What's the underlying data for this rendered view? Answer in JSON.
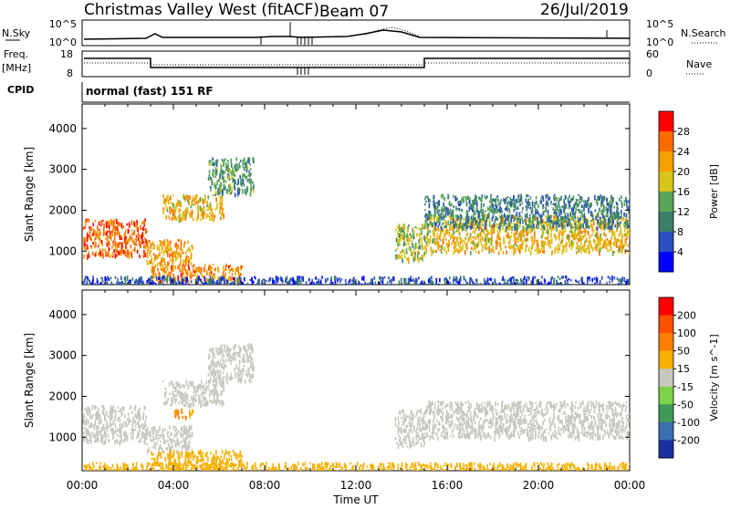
{
  "header": {
    "station": "Christmas Valley West (fitACF)",
    "beam": "Beam 07",
    "date": "26/Jul/2019"
  },
  "strip_labels": {
    "nsky": "N.Sky",
    "nsearch": "N.Search",
    "freq": "Freq.",
    "freq_unit": "[MHz]",
    "nave": "Nave",
    "cpid": "CPID",
    "cpid_value": "normal (fast) 151 RF",
    "noise_tick_top": "10^5",
    "noise_tick_bottom": "10^0",
    "freq_tick_top": "18",
    "freq_tick_bottom": "8",
    "nave_tick_top": "60",
    "nave_tick_bottom": "0"
  },
  "chart_data": [
    {
      "type": "heatmap",
      "panel": "power",
      "ylabel": "Slant Range [km]",
      "xlabel": "Time UT",
      "xlim_hours": [
        0,
        24
      ],
      "ylim_km": [
        180,
        4600
      ],
      "x_ticks": [
        "00:00",
        "04:00",
        "08:00",
        "12:00",
        "16:00",
        "20:00",
        "00:00"
      ],
      "y_ticks": [
        1000,
        2000,
        3000,
        4000
      ],
      "colorbar": {
        "label": "Power [dB]",
        "ticks": [
          4,
          8,
          12,
          16,
          20,
          24,
          28
        ],
        "colors": [
          "#0000ff",
          "#2a4fbf",
          "#3a7f6a",
          "#57a657",
          "#d7c51a",
          "#f5a000",
          "#ff6a00",
          "#ff0000"
        ]
      },
      "echo_regions": [
        {
          "t0": 0.0,
          "t1": 2.8,
          "r0": 900,
          "r1": 1800,
          "level": 26
        },
        {
          "t0": 2.8,
          "t1": 4.8,
          "r0": 700,
          "r1": 1300,
          "level": 22
        },
        {
          "t0": 3.5,
          "t1": 6.2,
          "r0": 1800,
          "r1": 2400,
          "level": 20
        },
        {
          "t0": 5.5,
          "t1": 7.5,
          "r0": 2400,
          "r1": 3300,
          "level": 12
        },
        {
          "t0": 3.0,
          "t1": 7.0,
          "r0": 250,
          "r1": 700,
          "level": 24
        },
        {
          "t0": 13.7,
          "t1": 15.0,
          "r0": 800,
          "r1": 1700,
          "level": 16
        },
        {
          "t0": 15.0,
          "t1": 24.0,
          "r0": 1000,
          "r1": 1900,
          "level": 20
        },
        {
          "t0": 15.0,
          "t1": 24.0,
          "r0": 1600,
          "r1": 2400,
          "level": 10
        },
        {
          "t0": 0.0,
          "t1": 24.0,
          "r0": 180,
          "r1": 400,
          "level": 6
        }
      ]
    },
    {
      "type": "heatmap",
      "panel": "velocity",
      "ylabel": "Slant Range [km]",
      "xlabel": "Time UT",
      "xlim_hours": [
        0,
        24
      ],
      "ylim_km": [
        180,
        4600
      ],
      "x_ticks": [
        "00:00",
        "04:00",
        "08:00",
        "12:00",
        "16:00",
        "20:00",
        "00:00"
      ],
      "y_ticks": [
        1000,
        2000,
        3000,
        4000
      ],
      "colorbar": {
        "label": "Velocity [m s^-1]",
        "ticks": [
          200,
          100,
          50,
          15,
          -15,
          -50,
          -100,
          -200
        ],
        "colors": [
          "#1a2fa0",
          "#3a6fb0",
          "#3f9a5a",
          "#7cd34a",
          "#c8c8c0",
          "#f5b000",
          "#ff8000",
          "#ff5000",
          "#ff0000"
        ]
      },
      "echo_regions": [
        {
          "t0": 0.0,
          "t1": 2.8,
          "r0": 900,
          "r1": 1800,
          "level": 0
        },
        {
          "t0": 2.8,
          "t1": 4.8,
          "r0": 700,
          "r1": 1300,
          "level": 0
        },
        {
          "t0": 3.5,
          "t1": 6.2,
          "r0": 1800,
          "r1": 2400,
          "level": 0
        },
        {
          "t0": 5.5,
          "t1": 7.5,
          "r0": 2400,
          "r1": 3300,
          "level": 0
        },
        {
          "t0": 4.0,
          "t1": 5.0,
          "r0": 1500,
          "r1": 1700,
          "level": -50
        },
        {
          "t0": 3.0,
          "t1": 7.0,
          "r0": 250,
          "r1": 700,
          "level": -30
        },
        {
          "t0": 13.7,
          "t1": 15.0,
          "r0": 800,
          "r1": 1700,
          "level": 0
        },
        {
          "t0": 15.0,
          "t1": 24.0,
          "r0": 1000,
          "r1": 1900,
          "level": 0
        },
        {
          "t0": 0.0,
          "t1": 24.0,
          "r0": 180,
          "r1": 400,
          "level": -30
        }
      ]
    }
  ]
}
